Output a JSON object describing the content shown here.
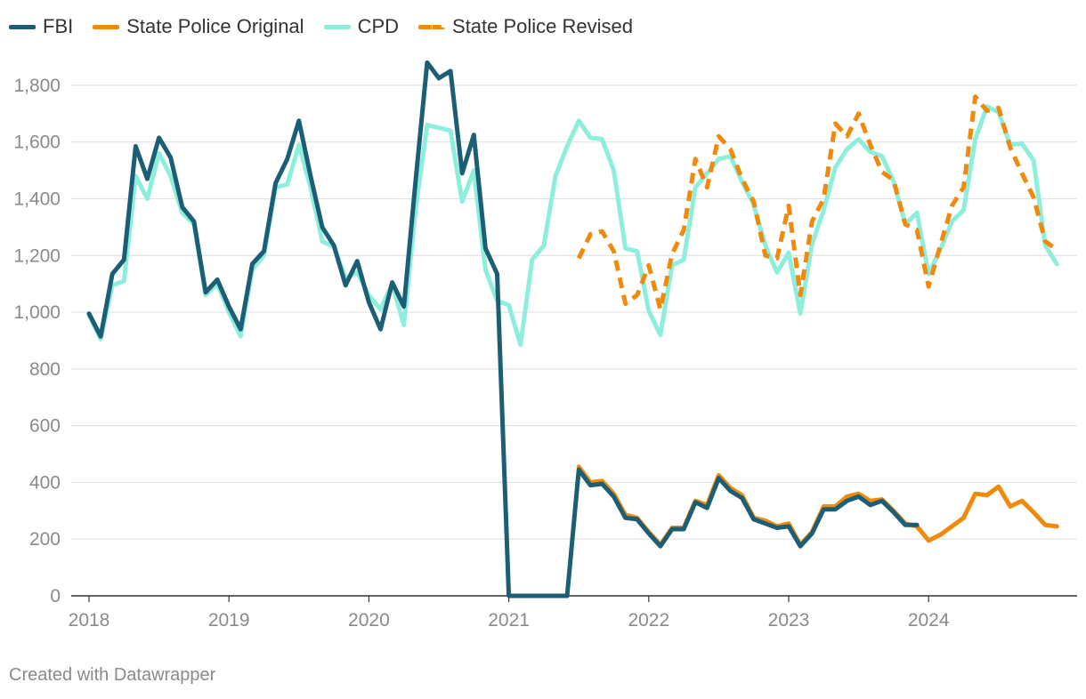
{
  "chart_data": {
    "type": "line",
    "title": "",
    "xlabel": "",
    "ylabel": "",
    "xlim": [
      2018,
      2025
    ],
    "ylim": [
      0,
      1900
    ],
    "x_ticks": [
      {
        "value": 2018,
        "label": "2018"
      },
      {
        "value": 2019,
        "label": "2019"
      },
      {
        "value": 2020,
        "label": "2020"
      },
      {
        "value": 2021,
        "label": "2021"
      },
      {
        "value": 2022,
        "label": "2022"
      },
      {
        "value": 2023,
        "label": "2023"
      },
      {
        "value": 2024,
        "label": "2024"
      }
    ],
    "y_ticks": [
      {
        "value": 0,
        "label": "0"
      },
      {
        "value": 200,
        "label": "200"
      },
      {
        "value": 400,
        "label": "400"
      },
      {
        "value": 600,
        "label": "600"
      },
      {
        "value": 800,
        "label": "800"
      },
      {
        "value": 1000,
        "label": "1,000"
      },
      {
        "value": 1200,
        "label": "1,200"
      },
      {
        "value": 1400,
        "label": "1,400"
      },
      {
        "value": 1600,
        "label": "1,600"
      },
      {
        "value": 1800,
        "label": "1,800"
      }
    ],
    "grid": true,
    "legend_position": "top-left",
    "series": [
      {
        "name": "CPD",
        "color": "#8eeedc",
        "dashed": false,
        "start": 2018.0,
        "step": 0.08333,
        "values": [
          990,
          905,
          1095,
          1110,
          1480,
          1400,
          1560,
          1480,
          1350,
          1310,
          1060,
          1100,
          1000,
          915,
          1150,
          1200,
          1440,
          1450,
          1590,
          1440,
          1250,
          1230,
          1120,
          1140,
          1060,
          1010,
          1100,
          955,
          1360,
          1660,
          1650,
          1640,
          1390,
          1500,
          1150,
          1040,
          1025,
          885,
          1185,
          1235,
          1480,
          1585,
          1675,
          1615,
          1610,
          1500,
          1225,
          1215,
          1005,
          920,
          1165,
          1185,
          1440,
          1490,
          1540,
          1550,
          1460,
          1380,
          1235,
          1140,
          1210,
          995,
          1240,
          1360,
          1510,
          1575,
          1610,
          1565,
          1550,
          1460,
          1310,
          1350,
          1135,
          1220,
          1320,
          1360,
          1610,
          1725,
          1705,
          1590,
          1595,
          1535,
          1235,
          1170
        ]
      },
      {
        "name": "State Police Revised",
        "color": "#f08a0c",
        "dashed": true,
        "start": 2021.5,
        "step": 0.08333,
        "values": [
          1190,
          1275,
          1285,
          1215,
          1030,
          1060,
          1165,
          1010,
          1205,
          1290,
          1540,
          1440,
          1620,
          1575,
          1470,
          1390,
          1200,
          1190,
          1375,
          1060,
          1320,
          1400,
          1665,
          1620,
          1700,
          1590,
          1495,
          1465,
          1310,
          1290,
          1090,
          1235,
          1375,
          1440,
          1760,
          1710,
          1720,
          1580,
          1490,
          1405,
          1250,
          1220
        ]
      },
      {
        "name": "State Police Original",
        "color": "#f08a0c",
        "dashed": false,
        "start": 2021.5,
        "step": 0.08333,
        "values": [
          455,
          400,
          405,
          360,
          285,
          275,
          225,
          180,
          240,
          240,
          335,
          320,
          425,
          380,
          355,
          275,
          265,
          245,
          255,
          180,
          225,
          315,
          315,
          350,
          360,
          335,
          340,
          300,
          255,
          245,
          195,
          215,
          245,
          275,
          360,
          355,
          385,
          315,
          335,
          295,
          250,
          245
        ]
      },
      {
        "name": "FBI",
        "color": "#1b5e75",
        "dashed": false,
        "start": 2018.0,
        "step": 0.08333,
        "values": [
          995,
          915,
          1135,
          1185,
          1585,
          1470,
          1615,
          1545,
          1370,
          1320,
          1070,
          1115,
          1020,
          940,
          1170,
          1215,
          1455,
          1540,
          1675,
          1480,
          1300,
          1235,
          1095,
          1180,
          1035,
          940,
          1105,
          1020,
          1460,
          1880,
          1825,
          1850,
          1490,
          1625,
          1225,
          1135,
          0,
          0,
          0,
          0,
          0,
          0,
          445,
          390,
          395,
          350,
          275,
          270,
          220,
          175,
          235,
          235,
          330,
          310,
          415,
          370,
          345,
          270,
          255,
          240,
          245,
          175,
          220,
          305,
          305,
          335,
          350,
          320,
          335,
          295,
          250,
          250
        ]
      }
    ],
    "legend": [
      {
        "name": "FBI",
        "color": "#1b5e75",
        "dashed": false
      },
      {
        "name": "State Police Original",
        "color": "#f08a0c",
        "dashed": false
      },
      {
        "name": "CPD",
        "color": "#8eeedc",
        "dashed": false
      },
      {
        "name": "State Police Revised",
        "color": "#f08a0c",
        "dashed": true
      }
    ]
  },
  "footer": {
    "credit": "Created with Datawrapper"
  }
}
